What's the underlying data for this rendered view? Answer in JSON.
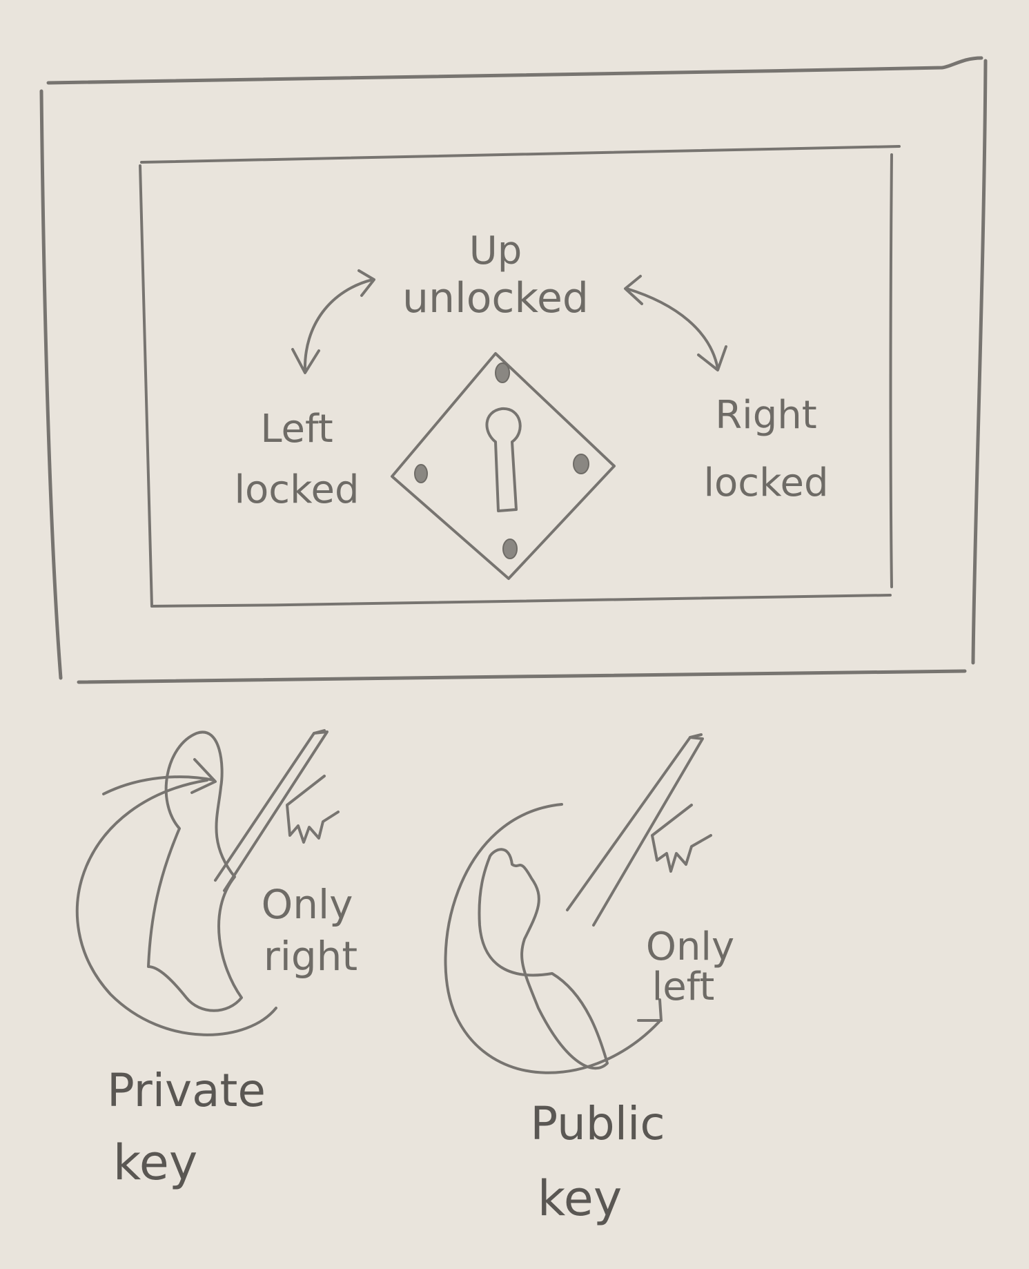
{
  "lock_diagram": {
    "states": {
      "up": {
        "line1": "Up",
        "line2": "unlocked"
      },
      "left": {
        "line1": "Left",
        "line2": "locked"
      },
      "right": {
        "line1": "Right",
        "line2": "locked"
      }
    }
  },
  "keys": {
    "private": {
      "direction_line1": "Only",
      "direction_line2": "right",
      "name_line1": "Private",
      "name_line2": "key"
    },
    "public": {
      "direction_line1": "Only",
      "direction_line2": "left",
      "name_line1": "Public",
      "name_line2": "key"
    }
  },
  "colors": {
    "paper": "#e9e4dc",
    "pencil": "#777470"
  }
}
